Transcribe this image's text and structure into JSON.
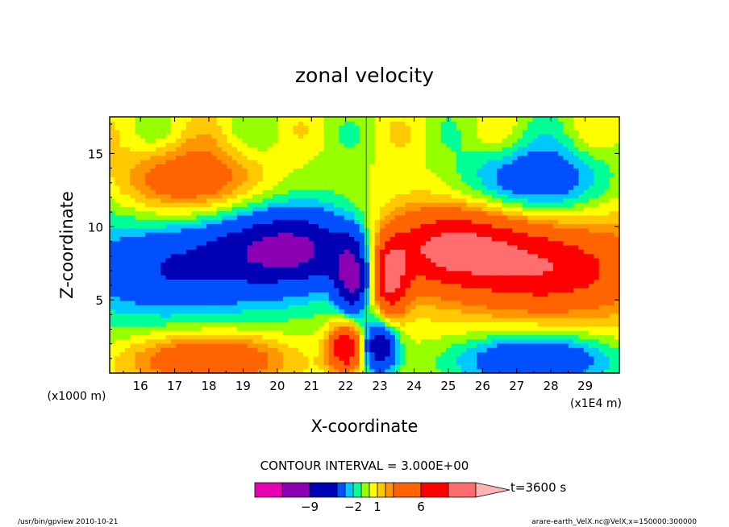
{
  "chart_data": {
    "type": "heatmap",
    "title": "zonal velocity",
    "xlabel": "X-coordinate",
    "ylabel": "Z-coordinate",
    "x_unit": "(x1E4 m)",
    "y_unit": "(x1000 m)",
    "xlim": [
      15.1,
      30.0
    ],
    "ylim": [
      0,
      17.5
    ],
    "x_ticks": [
      16,
      17,
      18,
      19,
      20,
      21,
      22,
      23,
      24,
      25,
      26,
      27,
      28,
      29
    ],
    "y_ticks": [
      5,
      10,
      15
    ],
    "contour_interval_label": "CONTOUR INTERVAL = 3.000E+00",
    "time_label": "t=3600 s",
    "colorbar": {
      "labels": [
        {
          "value": -9,
          "text": "−9"
        },
        {
          "value": -2,
          "text": "−2"
        },
        {
          "value": 1,
          "text": "1"
        },
        {
          "value": 6,
          "text": "6"
        }
      ],
      "colors": [
        "#e600b4",
        "#8c00b4",
        "#0000b4",
        "#0050ff",
        "#00c8ff",
        "#00ff96",
        "#96ff00",
        "#ffff00",
        "#ffc800",
        "#ff9600",
        "#ff6400",
        "#ff0000",
        "#ff6e6e",
        "#ffb4b4"
      ]
    },
    "velocity_field": [
      {
        "x": 17.4,
        "z": 13.2,
        "u": 6,
        "feature": "upper-left warm lobe"
      },
      {
        "x": 17.0,
        "z": 7.0,
        "u": -4,
        "feature": "left cold band"
      },
      {
        "x": 20.5,
        "z": 8.5,
        "u": -9,
        "feature": "left inner minimum"
      },
      {
        "x": 22.2,
        "z": 6.5,
        "u": -9,
        "feature": "left near-axis minimum"
      },
      {
        "x": 22.0,
        "z": 1.8,
        "u": 9,
        "feature": "lower left maximum"
      },
      {
        "x": 23.0,
        "z": 1.8,
        "u": -9,
        "feature": "lower right minimum"
      },
      {
        "x": 23.3,
        "z": 6.5,
        "u": 9,
        "feature": "right near-axis maximum"
      },
      {
        "x": 25.0,
        "z": 8.5,
        "u": 9,
        "feature": "right inner maximum"
      },
      {
        "x": 28.0,
        "z": 7.0,
        "u": 6,
        "feature": "right warm band"
      },
      {
        "x": 27.6,
        "z": 13.2,
        "u": -6,
        "feature": "upper-right cold lobe"
      },
      {
        "x": 18.0,
        "z": 1.0,
        "u": 6,
        "feature": "bottom-left warm layer"
      },
      {
        "x": 27.5,
        "z": 1.0,
        "u": -6,
        "feature": "bottom-right cold layer"
      },
      {
        "x": 22.6,
        "z": 12.0,
        "u": 0,
        "feature": "central axis"
      }
    ]
  },
  "footer": {
    "left": "/usr/bin/gpview   2010-10-21",
    "right": "arare-earth_VelX.nc@VelX,x=150000:300000"
  }
}
